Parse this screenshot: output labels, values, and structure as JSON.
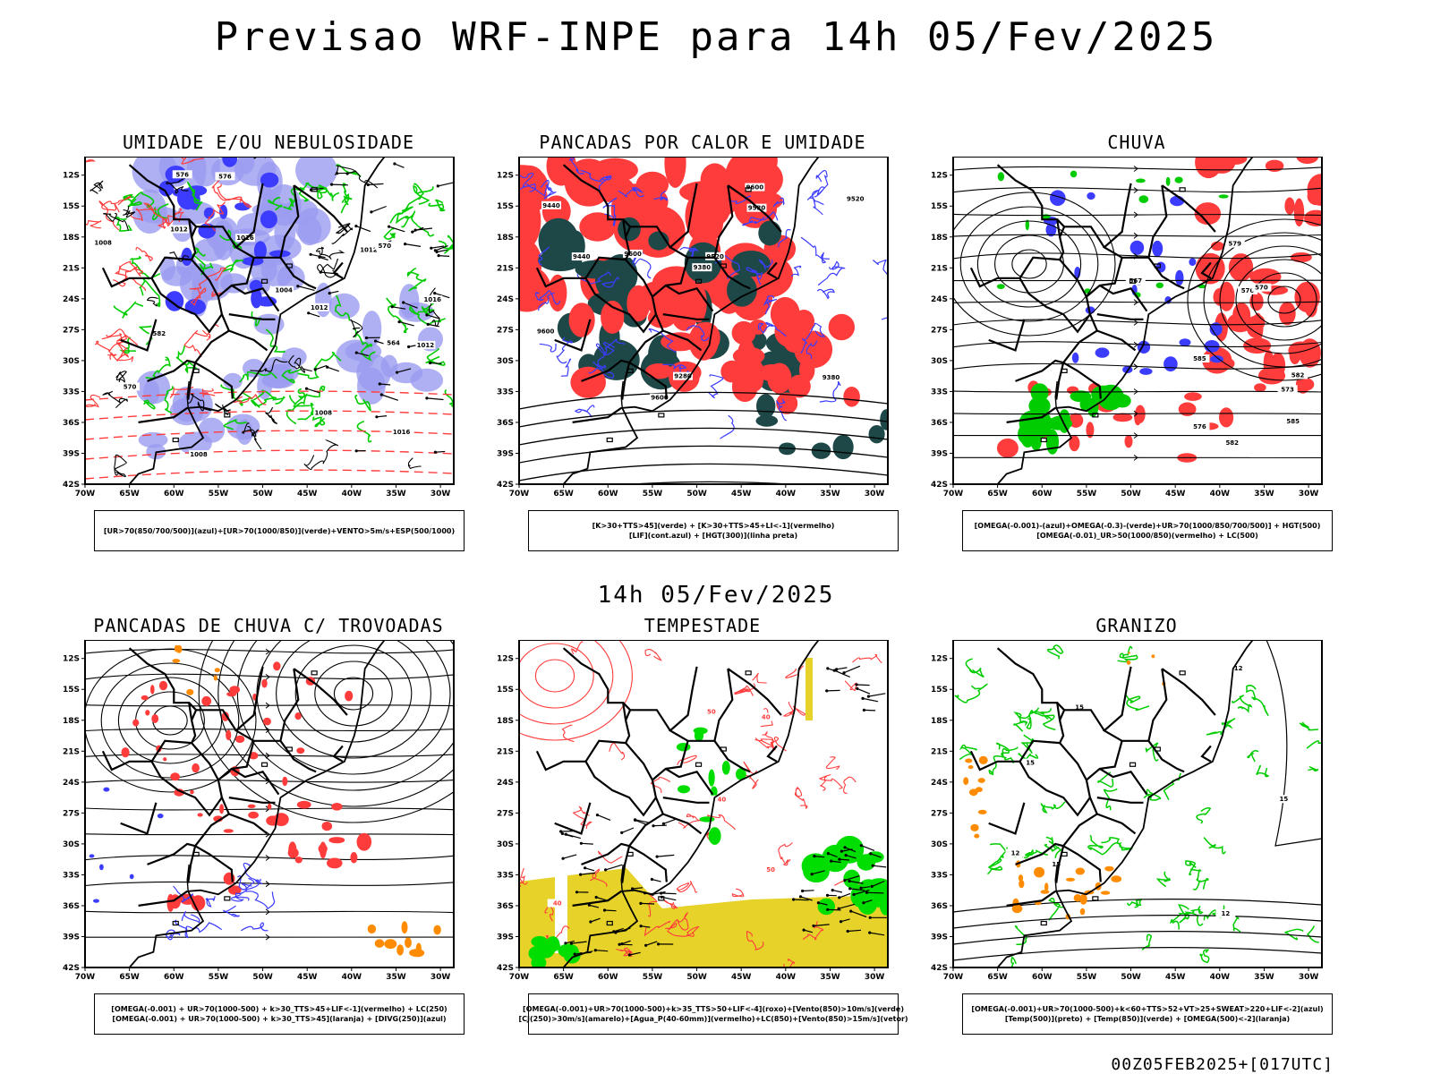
{
  "page": {
    "main_title": "Previsao WRF-INPE  para 14h 05/Fev/2025",
    "mid_title": "14h 05/Fev/2025",
    "footer": "00Z05FEB2025+[017UTC]"
  },
  "axes": {
    "lat_labels": [
      "12S",
      "15S",
      "18S",
      "21S",
      "24S",
      "27S",
      "30S",
      "33S",
      "36S",
      "39S",
      "42S"
    ],
    "lon_labels": [
      "70W",
      "65W",
      "60W",
      "55W",
      "50W",
      "45W",
      "40W",
      "35W",
      "30W"
    ]
  },
  "colors": {
    "red": "#ff3c3c",
    "blue": "#3c3cff",
    "light_blue": "#9b9bf0",
    "green": "#00cc00",
    "bright_green": "#00dd00",
    "dark_teal": "#1e4848",
    "orange": "#ff8c00",
    "yellow": "#e6d228"
  },
  "panels": [
    {
      "title": "UMIDADE E/OU NEBULOSIDADE",
      "legend": [
        "[UR>70(850/700/500)](azul)+[UR>70(1000/850)](verde)+VENTO>5m/s+ESP(500/1000)"
      ],
      "contour_labels": [
        "1012",
        "1008",
        "1012",
        "1016",
        "1012",
        "1008",
        "1004",
        "1016",
        "1016",
        "1012",
        "1008",
        "576",
        "570",
        "564",
        "576",
        "582",
        "570"
      ]
    },
    {
      "title": "PANCADAS POR CALOR E UMIDADE",
      "legend": [
        "[K>30+TTS>45](verde) + [K>30+TTS>45+LI<-1](vermelho)",
        "[LIF](cont.azul) + [HGT(300)](linha preta)"
      ],
      "contour_labels": [
        "9600",
        "9600",
        "9600",
        "9520",
        "9600",
        "9520",
        "9440",
        "9380",
        "9520",
        "9440",
        "9380",
        "9280"
      ]
    },
    {
      "title": "CHUVA",
      "legend": [
        "[OMEGA(-0.001)-(azul)+OMEGA(-0.3)-(verde)+UR>70(1000/850/700/500)] + HGT(500)",
        "[OMEGA(-0.01)_UR>50(1000/850)(vermelho) + LC(500)"
      ],
      "contour_labels": [
        "585",
        "582",
        "576",
        "573",
        "576",
        "579",
        "570",
        "567",
        "585",
        "582"
      ]
    },
    {
      "title": "PANCADAS DE CHUVA C/ TROVOADAS",
      "legend": [
        "[OMEGA(-0.001) + UR>70(1000-500) + k>30_TTS>45+LIF<-1](vermelho) + LC(250)",
        "[OMEGA(-0.001) + UR>70(1000-500) + k>30_TTS>45](laranja) + [DIVG(250)](azul)"
      ],
      "contour_labels": []
    },
    {
      "title": "TEMPESTADE",
      "legend": [
        "[OMEGA(-0.001)+UR>70(1000-500)+k>35_TTS>50+LIF<-4](roxo)+[Vento(850)>10m/s](verde)",
        "[CJ(250)>30m/s](amarelo)+[Agua_P(40-60mm)](vermelho)+LC(850)+[Vento(850)>15m/s](vetor)"
      ],
      "contour_labels": [
        "50",
        "40",
        "50",
        "40",
        "40"
      ]
    },
    {
      "title": "GRANIZO",
      "legend": [
        "[OMEGA(-0.001)+UR>70(1000-500)+k<60+TTS>52+VT>25+SWEAT>220+LIF<-2](azul)",
        "[Temp(500)](preto) + [Temp(850)](verde) + [OMEGA(500)<-2](laranja)"
      ],
      "contour_labels": [
        "12",
        "15",
        "15",
        "12",
        "15",
        "12",
        "15"
      ]
    }
  ]
}
